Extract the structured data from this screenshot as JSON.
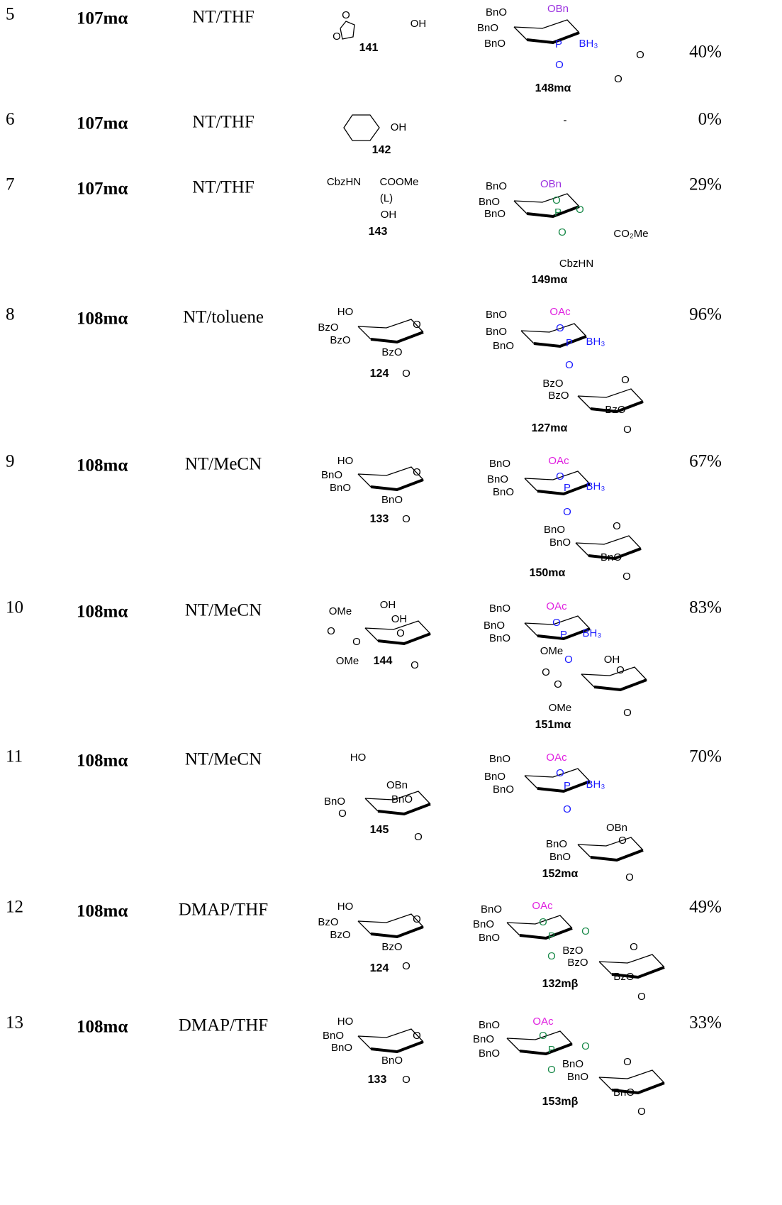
{
  "rows": [
    {
      "entry": "5",
      "donor": "107mα",
      "conditions": "NT/THF",
      "acceptor": {
        "id": "141",
        "labels": [
          "O",
          "O",
          "OH"
        ]
      },
      "product": {
        "id": "148mα",
        "labels": [
          "BnO",
          "OBn",
          "BnO",
          "BnO",
          "P",
          "BH₃",
          "O",
          "O",
          "O"
        ]
      },
      "yield": "40%"
    },
    {
      "entry": "6",
      "donor": "107mα",
      "conditions": "NT/THF",
      "acceptor": {
        "id": "142",
        "labels": [
          "OH"
        ]
      },
      "product": {
        "labels": [
          "-"
        ]
      },
      "yield": "0%"
    },
    {
      "entry": "7",
      "donor": "107mα",
      "conditions": "NT/THF",
      "acceptor": {
        "id": "143",
        "labels": [
          "CbzHN",
          "COOMe",
          "(L)",
          "OH"
        ]
      },
      "product": {
        "id": "149mα",
        "labels": [
          "BnO",
          "OBn",
          "BnO",
          "BnO",
          "O",
          "P",
          "O",
          "O",
          "CO₂Me",
          "CbzHN"
        ]
      },
      "yield": "29%"
    },
    {
      "entry": "8",
      "donor": "108mα",
      "conditions": "NT/toluene",
      "acceptor": {
        "id": "124",
        "labels": [
          "HO",
          "BzO",
          "BzO",
          "O",
          "BzO",
          "O"
        ]
      },
      "product": {
        "id": "127mα",
        "labels": [
          "BnO",
          "OAc",
          "BnO",
          "BnO",
          "O",
          "P",
          "BH₃",
          "O",
          "BzO",
          "O",
          "BzO",
          "BzO",
          "O"
        ]
      },
      "yield": "96%"
    },
    {
      "entry": "9",
      "donor": "108mα",
      "conditions": "NT/MeCN",
      "acceptor": {
        "id": "133",
        "labels": [
          "HO",
          "BnO",
          "BnO",
          "O",
          "BnO",
          "O"
        ]
      },
      "product": {
        "id": "150mα",
        "labels": [
          "BnO",
          "OAc",
          "BnO",
          "BnO",
          "O",
          "P",
          "BH₃",
          "O",
          "BnO",
          "O",
          "BnO",
          "BnO",
          "O"
        ]
      },
      "yield": "67%"
    },
    {
      "entry": "10",
      "donor": "108mα",
      "conditions": "NT/MeCN",
      "acceptor": {
        "id": "144",
        "labels": [
          "OMe",
          "OH",
          "OH",
          "O",
          "O",
          "O",
          "OMe",
          "O"
        ]
      },
      "product": {
        "id": "151mα",
        "labels": [
          "BnO",
          "OAc",
          "BnO",
          "BnO",
          "O",
          "P",
          "BH₃",
          "OMe",
          "O",
          "OH",
          "O",
          "O",
          "O",
          "OMe",
          "O"
        ]
      },
      "yield": "83%"
    },
    {
      "entry": "11",
      "donor": "108mα",
      "conditions": "NT/MeCN",
      "acceptor": {
        "id": "145",
        "labels": [
          "HO",
          "OBn",
          "BnO",
          "O",
          "BnO",
          "O"
        ]
      },
      "product": {
        "id": "152mα",
        "labels": [
          "BnO",
          "OAc",
          "BnO",
          "BnO",
          "O",
          "P",
          "BH₃",
          "O",
          "OBn",
          "BnO",
          "O",
          "BnO",
          "O"
        ]
      },
      "yield": "70%"
    },
    {
      "entry": "12",
      "donor": "108mα",
      "conditions": "DMAP/THF",
      "acceptor": {
        "id": "124",
        "labels": [
          "HO",
          "BzO",
          "BzO",
          "O",
          "BzO",
          "O"
        ]
      },
      "product": {
        "id": "132mβ",
        "labels": [
          "BnO",
          "OAc",
          "BnO",
          "BnO",
          "O",
          "P",
          "O",
          "O",
          "BzO",
          "O",
          "BzO",
          "BzO",
          "O"
        ]
      },
      "yield": "49%"
    },
    {
      "entry": "13",
      "donor": "108mα",
      "conditions": "DMAP/THF",
      "acceptor": {
        "id": "133",
        "labels": [
          "HO",
          "BnO",
          "BnO",
          "O",
          "BnO",
          "O"
        ]
      },
      "product": {
        "id": "153mβ",
        "labels": [
          "BnO",
          "OAc",
          "BnO",
          "BnO",
          "O",
          "P",
          "O",
          "O",
          "BnO",
          "O",
          "BnO",
          "BnO",
          "O"
        ]
      },
      "yield": "33%"
    }
  ]
}
